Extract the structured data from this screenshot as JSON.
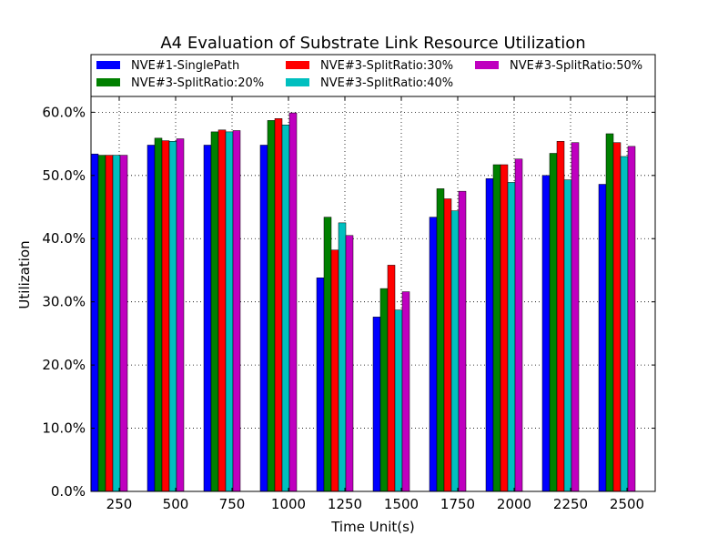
{
  "chart_data": {
    "type": "bar",
    "title": "A4 Evaluation of Substrate Link Resource Utilization",
    "xlabel": "Time Unit(s)",
    "ylabel": "Utilization",
    "categories": [
      "250",
      "500",
      "750",
      "1000",
      "1250",
      "1500",
      "1750",
      "2000",
      "2250",
      "2500"
    ],
    "ylim": [
      0,
      62.5
    ],
    "yticks": [
      0,
      10,
      20,
      30,
      40,
      50,
      60
    ],
    "ytick_labels": [
      "0.0%",
      "10.0%",
      "20.0%",
      "30.0%",
      "40.0%",
      "50.0%",
      "60.0%"
    ],
    "grid": true,
    "legend_position": "top",
    "series": [
      {
        "name": "NVE#1-SinglePath",
        "color": "#0000ff",
        "values": [
          53.4,
          54.8,
          54.8,
          54.8,
          33.8,
          27.6,
          43.4,
          49.5,
          50.0,
          48.6
        ]
      },
      {
        "name": "NVE#3-SplitRatio:20%",
        "color": "#008000",
        "values": [
          53.2,
          55.9,
          56.9,
          58.7,
          43.4,
          32.1,
          47.9,
          51.7,
          53.5,
          56.6
        ]
      },
      {
        "name": "NVE#3-SplitRatio:30%",
        "color": "#ff0000",
        "values": [
          53.2,
          55.5,
          57.2,
          59.0,
          38.2,
          35.8,
          46.3,
          51.7,
          55.4,
          55.2
        ]
      },
      {
        "name": "NVE#3-SplitRatio:40%",
        "color": "#00bfbf",
        "values": [
          53.2,
          55.4,
          56.9,
          58.0,
          42.5,
          28.7,
          44.4,
          48.9,
          49.3,
          53.0
        ]
      },
      {
        "name": "NVE#3-SplitRatio:50%",
        "color": "#bf00bf",
        "values": [
          53.2,
          55.8,
          57.1,
          59.9,
          40.5,
          31.6,
          47.5,
          52.6,
          55.2,
          54.6
        ]
      }
    ]
  }
}
